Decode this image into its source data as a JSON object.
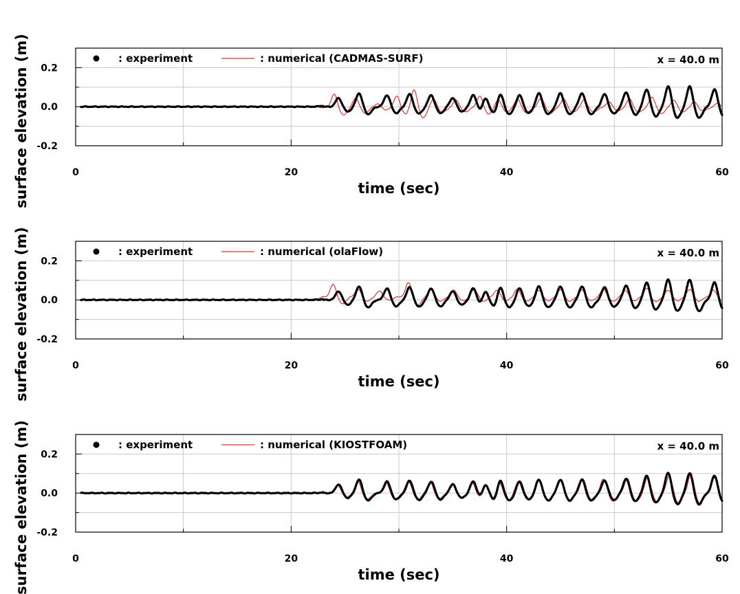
{
  "chart_data": [
    {
      "type": "line",
      "xlabel": "time (sec)",
      "ylabel": "surface elevation (m)",
      "xlim": [
        0,
        60
      ],
      "ylim": [
        -0.2,
        0.3
      ],
      "xticks": [
        0,
        20,
        40,
        60
      ],
      "xtick_labels": [
        "0",
        "20",
        "40",
        "60"
      ],
      "yticks": [
        -0.2,
        0.0,
        0.2
      ],
      "ytick_labels": [
        "-0.2",
        "0.0",
        "0.2"
      ],
      "grid": true,
      "annotation": "x = 40.0 m",
      "series": [
        {
          "name": "experiment",
          "legend_label": ": experiment",
          "marker": "dot",
          "color": "#000000",
          "wave": {
            "quiet_until": 23.0,
            "mean": 0.0,
            "crests": [
              [
                24.4,
                0.045
              ],
              [
                26.3,
                0.07
              ],
              [
                28.9,
                0.06
              ],
              [
                31.0,
                0.065
              ],
              [
                33.0,
                0.06
              ],
              [
                35.0,
                0.045
              ],
              [
                36.9,
                0.06
              ],
              [
                38.0,
                0.065
              ],
              [
                39.4,
                0.07
              ],
              [
                41.2,
                0.06
              ],
              [
                43.0,
                0.07
              ],
              [
                45.0,
                0.07
              ],
              [
                47.0,
                0.07
              ],
              [
                49.1,
                0.065
              ],
              [
                51.1,
                0.075
              ],
              [
                53.0,
                0.09
              ],
              [
                55.0,
                0.105
              ],
              [
                57.0,
                0.105
              ],
              [
                59.3,
                0.09
              ]
            ]
          }
        },
        {
          "name": "numerical (CADMAS-SURF)",
          "legend_label": ": numerical (CADMAS-SURF)",
          "color": "#e0312b",
          "wave": {
            "quiet_until": 22.8,
            "mean": -0.005,
            "crests": [
              [
                24.0,
                0.07
              ],
              [
                26.0,
                0.05
              ],
              [
                28.0,
                0.02
              ],
              [
                29.8,
                0.06
              ],
              [
                31.4,
                0.095
              ],
              [
                33.2,
                0.045
              ],
              [
                35.3,
                0.04
              ],
              [
                37.5,
                0.06
              ],
              [
                39.2,
                0.04
              ],
              [
                41.0,
                0.045
              ],
              [
                43.2,
                0.05
              ],
              [
                45.3,
                0.045
              ],
              [
                47.2,
                0.04
              ],
              [
                49.5,
                0.03
              ],
              [
                51.4,
                0.045
              ],
              [
                53.5,
                0.055
              ],
              [
                55.5,
                0.04
              ],
              [
                57.4,
                0.03
              ],
              [
                59.6,
                0.025
              ]
            ]
          }
        }
      ]
    },
    {
      "type": "line",
      "xlabel": "time (sec)",
      "ylabel": "surface elevation (m)",
      "xlim": [
        0,
        60
      ],
      "ylim": [
        -0.2,
        0.3
      ],
      "xticks": [
        0,
        20,
        40,
        60
      ],
      "xtick_labels": [
        "0",
        "20",
        "40",
        "60"
      ],
      "yticks": [
        -0.2,
        0.0,
        0.2
      ],
      "ytick_labels": [
        "-0.2",
        "0.0",
        "0.2"
      ],
      "grid": true,
      "annotation": "x = 40.0 m",
      "series": [
        {
          "name": "experiment",
          "legend_label": ": experiment",
          "marker": "dot",
          "color": "#000000",
          "wave": {
            "quiet_until": 23.0,
            "mean": 0.0,
            "crests": [
              [
                24.4,
                0.045
              ],
              [
                26.3,
                0.07
              ],
              [
                28.9,
                0.06
              ],
              [
                31.0,
                0.065
              ],
              [
                33.0,
                0.06
              ],
              [
                35.0,
                0.045
              ],
              [
                36.9,
                0.06
              ],
              [
                38.0,
                0.065
              ],
              [
                39.4,
                0.07
              ],
              [
                41.2,
                0.06
              ],
              [
                43.0,
                0.07
              ],
              [
                45.0,
                0.07
              ],
              [
                47.0,
                0.07
              ],
              [
                49.1,
                0.065
              ],
              [
                51.1,
                0.075
              ],
              [
                53.0,
                0.09
              ],
              [
                55.0,
                0.105
              ],
              [
                57.0,
                0.105
              ],
              [
                59.3,
                0.09
              ]
            ]
          }
        },
        {
          "name": "numerical (olaFlow)",
          "legend_label": ": numerical (olaFlow)",
          "color": "#e0312b",
          "wave": {
            "quiet_until": 22.8,
            "mean": 0.015,
            "crests": [
              [
                23.9,
                0.065
              ],
              [
                26.2,
                0.04
              ],
              [
                28.2,
                0.03
              ],
              [
                30.9,
                0.075
              ],
              [
                33.0,
                0.04
              ],
              [
                35.1,
                0.035
              ],
              [
                37.0,
                0.04
              ],
              [
                39.1,
                0.035
              ],
              [
                41.0,
                0.04
              ],
              [
                43.0,
                0.035
              ],
              [
                45.0,
                0.04
              ],
              [
                47.0,
                0.035
              ],
              [
                49.0,
                0.04
              ],
              [
                51.0,
                0.035
              ],
              [
                53.0,
                0.045
              ],
              [
                55.0,
                0.035
              ],
              [
                57.0,
                0.04
              ],
              [
                59.2,
                0.035
              ]
            ]
          }
        }
      ]
    },
    {
      "type": "line",
      "xlabel": "time (sec)",
      "ylabel": "surface elevation (m)",
      "xlim": [
        0,
        60
      ],
      "ylim": [
        -0.2,
        0.3
      ],
      "xticks": [
        0,
        20,
        40,
        60
      ],
      "xtick_labels": [
        "0",
        "20",
        "40",
        "60"
      ],
      "yticks": [
        -0.2,
        0.0,
        0.2
      ],
      "ytick_labels": [
        "-0.2",
        "0.0",
        "0.2"
      ],
      "grid": true,
      "annotation": "x = 40.0 m",
      "series": [
        {
          "name": "experiment",
          "legend_label": ": experiment",
          "marker": "dot",
          "color": "#000000",
          "wave": {
            "quiet_until": 23.0,
            "mean": 0.0,
            "crests": [
              [
                24.4,
                0.045
              ],
              [
                26.3,
                0.07
              ],
              [
                28.9,
                0.06
              ],
              [
                31.0,
                0.065
              ],
              [
                33.0,
                0.06
              ],
              [
                35.0,
                0.045
              ],
              [
                36.9,
                0.06
              ],
              [
                38.0,
                0.065
              ],
              [
                39.4,
                0.07
              ],
              [
                41.2,
                0.06
              ],
              [
                43.0,
                0.07
              ],
              [
                45.0,
                0.07
              ],
              [
                47.0,
                0.07
              ],
              [
                49.1,
                0.065
              ],
              [
                51.1,
                0.075
              ],
              [
                53.0,
                0.09
              ],
              [
                55.0,
                0.105
              ],
              [
                57.0,
                0.105
              ],
              [
                59.3,
                0.09
              ]
            ]
          }
        },
        {
          "name": "numerical (KIOSTFOAM)",
          "legend_label": ": numerical (KIOSTFOAM)",
          "color": "#e0312b",
          "wave": {
            "quiet_until": 23.0,
            "mean": 0.0,
            "crests": [
              [
                24.3,
                0.04
              ],
              [
                26.2,
                0.06
              ],
              [
                28.8,
                0.055
              ],
              [
                30.9,
                0.06
              ],
              [
                32.9,
                0.055
              ],
              [
                35.0,
                0.05
              ],
              [
                36.8,
                0.055
              ],
              [
                38.0,
                0.06
              ],
              [
                39.3,
                0.065
              ],
              [
                41.1,
                0.06
              ],
              [
                43.0,
                0.065
              ],
              [
                45.0,
                0.065
              ],
              [
                47.1,
                0.07
              ],
              [
                49.0,
                0.075
              ],
              [
                51.2,
                0.075
              ],
              [
                53.1,
                0.08
              ],
              [
                55.1,
                0.09
              ],
              [
                57.1,
                0.095
              ],
              [
                59.3,
                0.08
              ]
            ]
          }
        }
      ]
    }
  ]
}
